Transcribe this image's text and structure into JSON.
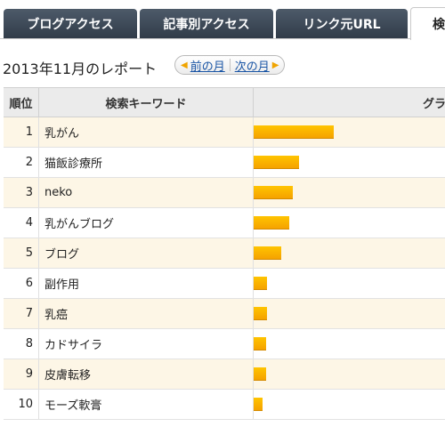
{
  "tabs": [
    {
      "label": "ブログアクセス"
    },
    {
      "label": "記事別アクセス"
    },
    {
      "label": "リンク元URL"
    },
    {
      "label": "検"
    }
  ],
  "report": {
    "title": "2013年11月のレポート",
    "prev_label": "前の月",
    "next_label": "次の月"
  },
  "table": {
    "headers": {
      "rank": "順位",
      "keyword": "検索キーワード",
      "graph": "グラフ"
    },
    "rows": [
      {
        "rank": "1",
        "keyword": "乳がん",
        "ratio": 1.0
      },
      {
        "rank": "2",
        "keyword": "猫飯診療所",
        "ratio": 0.57
      },
      {
        "rank": "3",
        "keyword": "neko",
        "ratio": 0.49
      },
      {
        "rank": "4",
        "keyword": "乳がんブログ",
        "ratio": 0.44
      },
      {
        "rank": "5",
        "keyword": "ブログ",
        "ratio": 0.34
      },
      {
        "rank": "6",
        "keyword": "副作用",
        "ratio": 0.17
      },
      {
        "rank": "7",
        "keyword": "乳癌",
        "ratio": 0.17
      },
      {
        "rank": "8",
        "keyword": "カドサイラ",
        "ratio": 0.16
      },
      {
        "rank": "9",
        "keyword": "皮膚転移",
        "ratio": 0.16
      },
      {
        "rank": "10",
        "keyword": "モーズ軟膏",
        "ratio": 0.11
      }
    ]
  },
  "colors": {
    "tab_bg": "#3d4956",
    "bar": "#ffb800",
    "row_alt": "#fdf6e6",
    "link": "#1a55a5"
  }
}
